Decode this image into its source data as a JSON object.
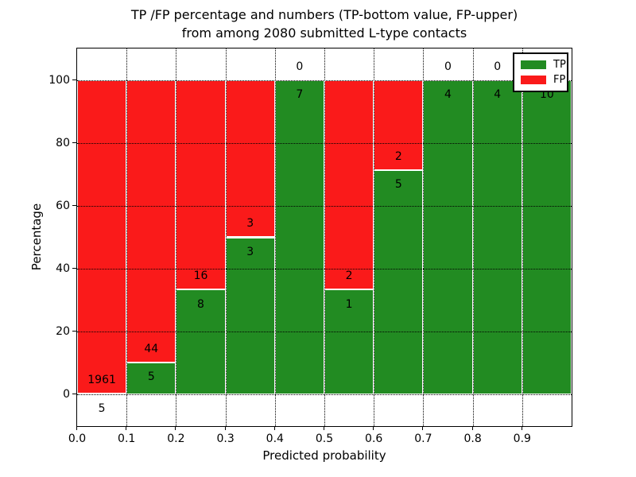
{
  "title": {
    "line1": "TP /FP percentage and numbers (TP-bottom value, FP-upper)",
    "line2": "from among 2080 submitted L-type contacts"
  },
  "chart_data": {
    "type": "bar",
    "variant": "stacked-normalized-percent",
    "title": "TP /FP percentage and numbers (TP-bottom value, FP-upper) from among 2080 submitted L-type contacts",
    "xlabel": "Predicted probability",
    "ylabel": "Percentage",
    "xlim": [
      0.0,
      1.0
    ],
    "ylim": [
      -10,
      110
    ],
    "x_tick_values": [
      0.0,
      0.1,
      0.2,
      0.3,
      0.4,
      0.5,
      0.6,
      0.7,
      0.8,
      0.9
    ],
    "x_tick_labels": [
      "0.0",
      "0.1",
      "0.2",
      "0.3",
      "0.4",
      "0.5",
      "0.6",
      "0.7",
      "0.8",
      "0.9"
    ],
    "y_tick_values": [
      0,
      20,
      40,
      60,
      80,
      100
    ],
    "y_tick_labels": [
      "0",
      "20",
      "40",
      "60",
      "80",
      "100"
    ],
    "grid": "dotted-black-above-bars",
    "categories": [
      "0.0-0.1",
      "0.1-0.2",
      "0.2-0.3",
      "0.3-0.4",
      "0.4-0.5",
      "0.5-0.6",
      "0.6-0.7",
      "0.7-0.8",
      "0.8-0.9",
      "0.9-1.0"
    ],
    "series": [
      {
        "name": "TP",
        "color": "#228b22",
        "stack_position": "bottom",
        "values": [
          5,
          5,
          8,
          3,
          7,
          1,
          5,
          4,
          4,
          10
        ]
      },
      {
        "name": "FP",
        "color": "#fa1a1a",
        "stack_position": "top",
        "values": [
          1961,
          44,
          16,
          3,
          0,
          2,
          2,
          0,
          0,
          0
        ]
      }
    ],
    "bar_label_rule": "FP count printed just above TP/FP boundary, TP count just below",
    "legend": {
      "position": "upper right",
      "entries": [
        "TP",
        "FP"
      ]
    }
  }
}
